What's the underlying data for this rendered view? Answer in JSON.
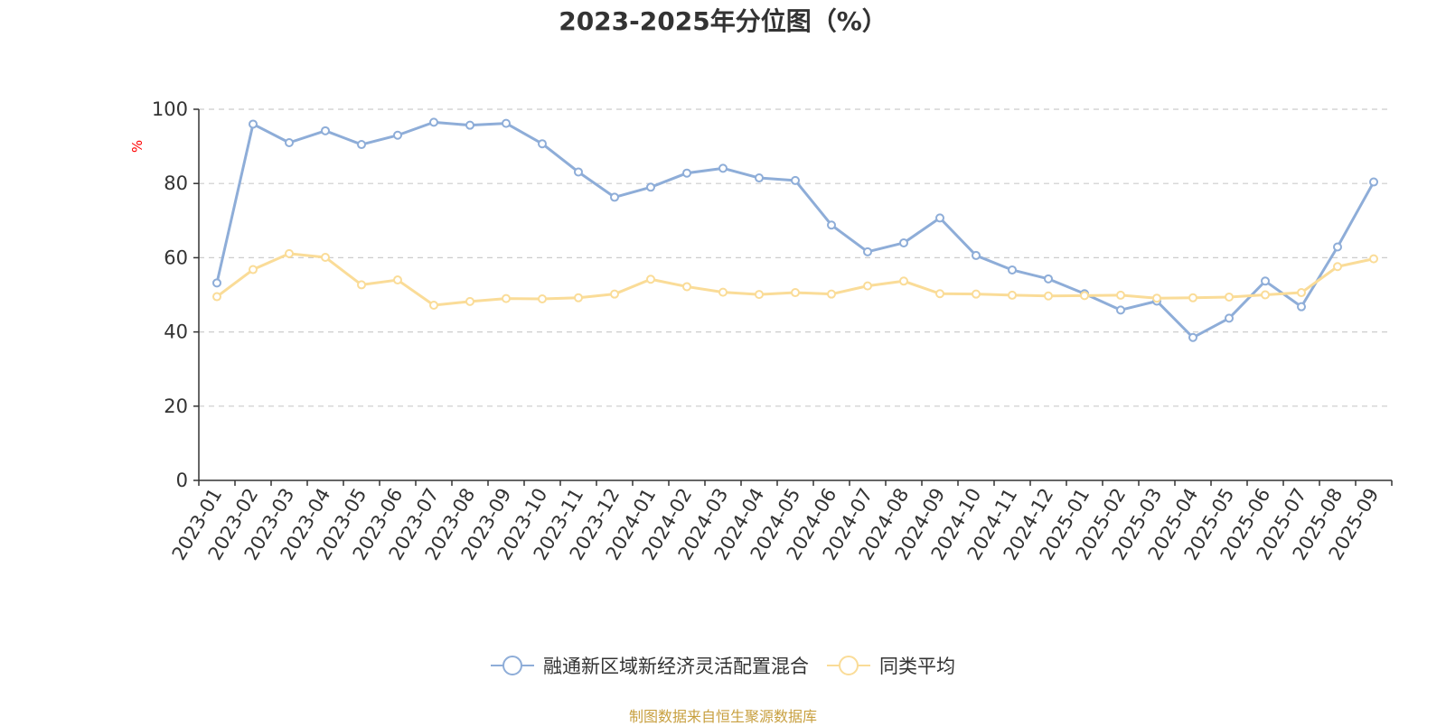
{
  "chart_data": {
    "type": "line",
    "title": "2023-2025年分位图（%）",
    "ylabel": "%",
    "ylim": [
      0,
      100
    ],
    "yticks": [
      0,
      20,
      40,
      60,
      80,
      100
    ],
    "grid": true,
    "legend_position": "bottom",
    "categories": [
      "2023-01",
      "2023-02",
      "2023-03",
      "2023-04",
      "2023-05",
      "2023-06",
      "2023-07",
      "2023-08",
      "2023-09",
      "2023-10",
      "2023-11",
      "2023-12",
      "2024-01",
      "2024-02",
      "2024-03",
      "2024-04",
      "2024-05",
      "2024-06",
      "2024-07",
      "2024-08",
      "2024-09",
      "2024-10",
      "2024-11",
      "2024-12",
      "2025-01",
      "2025-02",
      "2025-03",
      "2025-04",
      "2025-05",
      "2025-06",
      "2025-07",
      "2025-08",
      "2025-09"
    ],
    "series": [
      {
        "name": "融通新区域新经济灵活配置混合",
        "color": "#8eadd8",
        "values": [
          53.2,
          96.0,
          91.0,
          94.2,
          90.5,
          93.0,
          96.5,
          95.7,
          96.2,
          90.7,
          83.1,
          76.3,
          79.0,
          82.8,
          84.1,
          81.5,
          80.8,
          68.8,
          61.6,
          64.0,
          70.7,
          60.6,
          56.7,
          54.3,
          50.3,
          45.9,
          48.3,
          38.5,
          43.7,
          53.7,
          46.8,
          62.9,
          80.4
        ]
      },
      {
        "name": "同类平均",
        "color": "#fadc98",
        "values": [
          49.5,
          56.8,
          61.1,
          60.1,
          52.7,
          54.0,
          47.2,
          48.2,
          49.0,
          48.9,
          49.2,
          50.2,
          54.2,
          52.2,
          50.7,
          50.1,
          50.6,
          50.2,
          52.4,
          53.7,
          50.3,
          50.2,
          49.9,
          49.7,
          49.8,
          49.9,
          49.1,
          49.2,
          49.4,
          50.0,
          50.6,
          57.6,
          59.7
        ]
      }
    ]
  },
  "source_text": "制图数据来自恒生聚源数据库"
}
